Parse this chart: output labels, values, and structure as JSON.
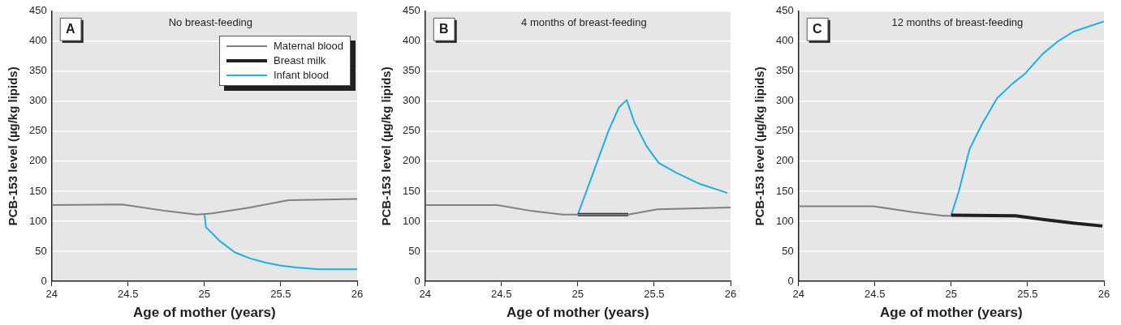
{
  "chart_data": [
    {
      "type": "line",
      "title": "No breast-feeding",
      "annotations": [
        "A"
      ],
      "xlabel": "Age of mother (years)",
      "ylabel": "PCB-153 level (µg/kg lipids)",
      "xlim": [
        24,
        26
      ],
      "xticks": [
        24,
        24.5,
        25,
        25.5,
        26
      ],
      "ylim": [
        0,
        450
      ],
      "yticks": [
        0,
        50,
        100,
        150,
        200,
        250,
        300,
        350,
        400,
        450
      ],
      "grid": "y",
      "legend": "top right",
      "marker": "none",
      "line_style": "solid",
      "series": [
        {
          "name": "Maternal blood",
          "color": "#808080",
          "x": [
            24,
            24.46,
            24.75,
            24.95,
            25.05,
            25.3,
            25.55,
            26
          ],
          "values": [
            127,
            128,
            117,
            111,
            113,
            123,
            135,
            137
          ]
        },
        {
          "name": "Breast milk",
          "color": "#231f20"
        },
        {
          "name": "Infant blood",
          "color": "#1ab0e8",
          "x": [
            25,
            25.01,
            25.05,
            25.1,
            25.2,
            25.3,
            25.4,
            25.5,
            25.6,
            25.75,
            26
          ],
          "values": [
            113,
            90,
            80,
            67,
            48,
            38,
            31,
            26,
            23,
            20,
            20
          ]
        }
      ]
    },
    {
      "type": "line",
      "title": "4 months of breast-feeding",
      "annotations": [
        "B"
      ],
      "xlabel": "Age of mother (years)",
      "ylabel": "PCB-153 level (µg/kg lipids)",
      "xlim": [
        24,
        26
      ],
      "xticks": [
        24,
        24.5,
        25,
        25.5,
        26
      ],
      "ylim": [
        0,
        450
      ],
      "yticks": [
        0,
        50,
        100,
        150,
        200,
        250,
        300,
        350,
        400,
        450
      ],
      "grid": "y",
      "marker": "none",
      "line_style": "solid",
      "series": [
        {
          "color": "#808080",
          "x": [
            24,
            24.47,
            24.7,
            24.9,
            25,
            25.33,
            25.52,
            26
          ],
          "values": [
            127,
            127,
            117,
            111,
            111,
            111,
            120,
            123
          ]
        },
        {
          "color": "#231f20",
          "x": [
            25,
            25.33
          ],
          "values": [
            111,
            111
          ]
        },
        {
          "color": "#1ab0e8",
          "x": [
            25,
            25.1,
            25.2,
            25.27,
            25.32,
            25.37,
            25.45,
            25.53,
            25.65,
            25.8,
            25.98
          ],
          "values": [
            111,
            180,
            250,
            290,
            302,
            265,
            225,
            197,
            180,
            162,
            147
          ]
        }
      ]
    },
    {
      "type": "line",
      "title": "12 months of breast-feeding",
      "annotations": [
        "C"
      ],
      "xlabel": "Age of mother (years)",
      "ylabel": "PCB-153 level (µg/kg lipids)",
      "xlim": [
        24,
        26
      ],
      "xticks": [
        24,
        24.5,
        25,
        25.5,
        26
      ],
      "ylim": [
        0,
        450
      ],
      "yticks": [
        0,
        50,
        100,
        150,
        200,
        250,
        300,
        350,
        400,
        450
      ],
      "grid": "y",
      "marker": "none",
      "line_style": "solid",
      "series": [
        {
          "color": "#808080",
          "x": [
            24,
            24.49,
            24.75,
            24.95,
            25
          ],
          "values": [
            125,
            125,
            115,
            109,
            109
          ]
        },
        {
          "color": "#231f20",
          "x": [
            25,
            25.42,
            25.6,
            25.8,
            25.99
          ],
          "values": [
            110,
            109,
            103,
            97,
            92
          ]
        },
        {
          "color": "#1ab0e8",
          "x": [
            25,
            25.05,
            25.12,
            25.2,
            25.3,
            25.4,
            25.48,
            25.6,
            25.7,
            25.8,
            26
          ],
          "values": [
            110,
            150,
            220,
            261,
            305,
            329,
            345,
            379,
            400,
            416,
            433
          ]
        }
      ]
    }
  ]
}
